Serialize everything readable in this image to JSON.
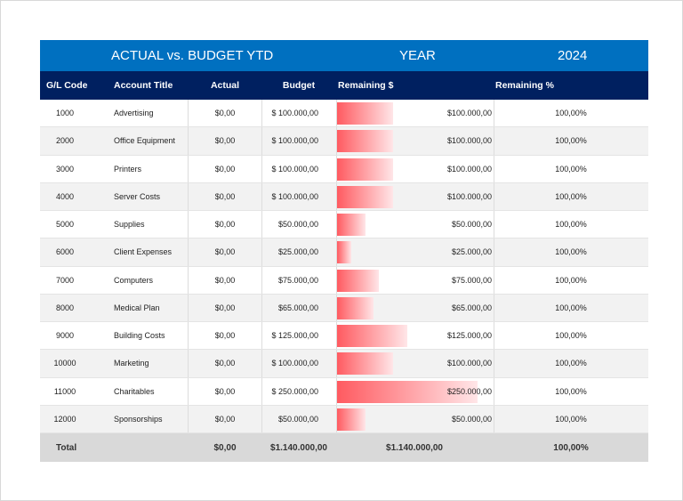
{
  "header": {
    "title": "ACTUAL vs. BUDGET YTD",
    "year_label": "YEAR",
    "year": "2024"
  },
  "columns": [
    "G/L Code",
    "Account Title",
    "Actual",
    "Budget",
    "Remaining $",
    "Remaining %"
  ],
  "bar_color": "#ff5a60",
  "bar_max": 250000,
  "rows": [
    {
      "code": "1000",
      "title": "Advertising",
      "actual": "$0,00",
      "budget": "$ 100.000,00",
      "remaining": "$100.000,00",
      "remaining_value": 100000,
      "pct": "100,00%"
    },
    {
      "code": "2000",
      "title": "Office Equipment",
      "actual": "$0,00",
      "budget": "$ 100.000,00",
      "remaining": "$100.000,00",
      "remaining_value": 100000,
      "pct": "100,00%"
    },
    {
      "code": "3000",
      "title": "Printers",
      "actual": "$0,00",
      "budget": "$ 100.000,00",
      "remaining": "$100.000,00",
      "remaining_value": 100000,
      "pct": "100,00%"
    },
    {
      "code": "4000",
      "title": "Server Costs",
      "actual": "$0,00",
      "budget": "$ 100.000,00",
      "remaining": "$100.000,00",
      "remaining_value": 100000,
      "pct": "100,00%"
    },
    {
      "code": "5000",
      "title": "Supplies",
      "actual": "$0,00",
      "budget": "$50.000,00",
      "remaining": "$50.000,00",
      "remaining_value": 50000,
      "pct": "100,00%"
    },
    {
      "code": "6000",
      "title": "Client Expenses",
      "actual": "$0,00",
      "budget": "$25.000,00",
      "remaining": "$25.000,00",
      "remaining_value": 25000,
      "pct": "100,00%"
    },
    {
      "code": "7000",
      "title": "Computers",
      "actual": "$0,00",
      "budget": "$75.000,00",
      "remaining": "$75.000,00",
      "remaining_value": 75000,
      "pct": "100,00%"
    },
    {
      "code": "8000",
      "title": "Medical Plan",
      "actual": "$0,00",
      "budget": "$65.000,00",
      "remaining": "$65.000,00",
      "remaining_value": 65000,
      "pct": "100,00%"
    },
    {
      "code": "9000",
      "title": "Building Costs",
      "actual": "$0,00",
      "budget": "$ 125.000,00",
      "remaining": "$125.000,00",
      "remaining_value": 125000,
      "pct": "100,00%"
    },
    {
      "code": "10000",
      "title": "Marketing",
      "actual": "$0,00",
      "budget": "$ 100.000,00",
      "remaining": "$100.000,00",
      "remaining_value": 100000,
      "pct": "100,00%"
    },
    {
      "code": "11000",
      "title": "Charitables",
      "actual": "$0,00",
      "budget": "$ 250.000,00",
      "remaining": "$250.000,00",
      "remaining_value": 250000,
      "pct": "100,00%"
    },
    {
      "code": "12000",
      "title": "Sponsorships",
      "actual": "$0,00",
      "budget": "$50.000,00",
      "remaining": "$50.000,00",
      "remaining_value": 50000,
      "pct": "100,00%"
    }
  ],
  "total": {
    "label": "Total",
    "actual": "$0,00",
    "budget": "$1.140.000,00",
    "remaining": "$1.140.000,00",
    "pct": "100,00%"
  }
}
